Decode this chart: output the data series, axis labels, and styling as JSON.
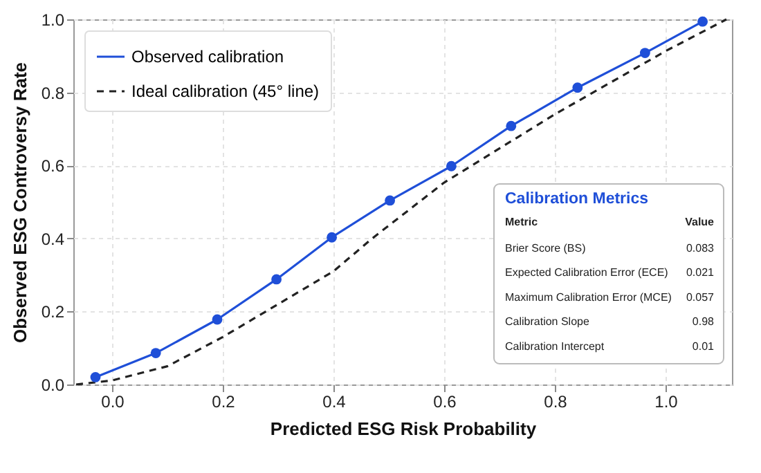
{
  "chart_data": {
    "type": "line",
    "xlabel": "Predicted ESG Risk Probability",
    "ylabel": "Observed ESG Controversy Rate",
    "series": [
      {
        "name": "Observed calibration",
        "color": "#1f4fd8",
        "marker": "circle",
        "line_style": "solid",
        "x": [
          -0.03,
          0.079,
          0.19,
          0.297,
          0.397,
          0.502,
          0.613,
          0.721,
          0.841,
          0.963,
          1.067
        ],
        "values": [
          0.02,
          0.086,
          0.178,
          0.288,
          0.403,
          0.504,
          0.598,
          0.708,
          0.813,
          0.908,
          0.994
        ]
      },
      {
        "name": "Ideal calibration (45° line)",
        "color": "#222222",
        "marker": "none",
        "line_style": "dashed",
        "x": [
          -0.065,
          0.0,
          0.1,
          0.2,
          0.3,
          0.4,
          0.47,
          0.6,
          0.8,
          1.0,
          1.11
        ],
        "values": [
          0.0,
          0.011,
          0.05,
          0.13,
          0.22,
          0.31,
          0.4,
          0.553,
          0.74,
          0.913,
          1.0
        ]
      }
    ],
    "xlim": [
      -0.07,
      1.12
    ],
    "ylim": [
      0,
      1.0
    ],
    "xticks": [
      {
        "value": 0,
        "label": "0.0"
      },
      0.2,
      0.4,
      0.6,
      0.8,
      {
        "value": 1,
        "label": "1.0"
      }
    ],
    "yticks": [
      {
        "value": 0,
        "label": "0.0"
      },
      0.2,
      0.4,
      0.6,
      0.8,
      {
        "value": 1,
        "label": "1.0"
      }
    ],
    "grid": true,
    "legend": "top left",
    "annotations": [
      "Calibration Metrics",
      "Metric",
      "Value",
      "Brier Score (BS)",
      "0.083",
      "Expected Calibration Error (ECE)",
      "0.021",
      "Maximum Calibration Error (MCE)",
      "0.057",
      "Calibration Slope",
      "0.98",
      "Calibration Intercept",
      "0.01"
    ]
  }
}
